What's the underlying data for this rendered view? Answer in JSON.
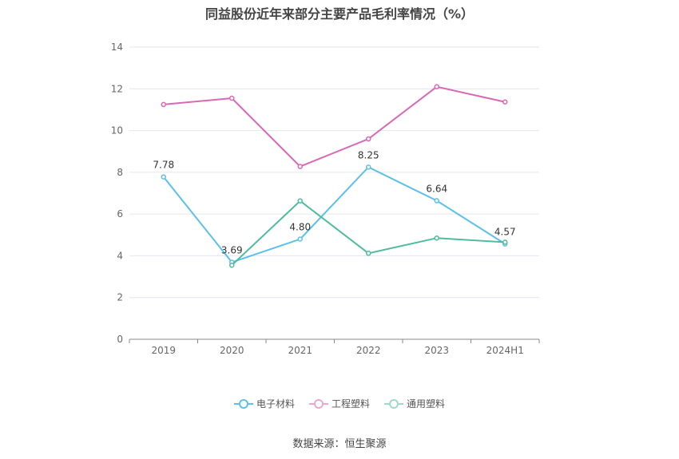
{
  "chart_data": {
    "type": "line",
    "title": "同益股份近年来部分主要产品毛利率情况（%）",
    "categories": [
      "2019",
      "2020",
      "2021",
      "2022",
      "2023",
      "2024H1"
    ],
    "ylim": [
      0,
      14
    ],
    "yticks": [
      "0",
      "2",
      "4",
      "6",
      "8",
      "10",
      "12",
      "14"
    ],
    "grid": true,
    "legend_position": "bottom",
    "series": [
      {
        "name": "电子材料",
        "color": "#5bc0eb",
        "values": [
          7.78,
          3.69,
          4.8,
          8.25,
          6.64,
          4.57
        ],
        "labels": [
          "7.78",
          "3.69",
          "4.80",
          "8.25",
          "6.64",
          "4.57"
        ]
      },
      {
        "name": "工程塑料",
        "color": "#d868b4",
        "values": [
          11.25,
          11.55,
          8.28,
          9.6,
          12.1,
          11.37
        ]
      },
      {
        "name": "通用塑料",
        "color": "#4dbb9c",
        "values": [
          null,
          3.55,
          6.63,
          4.12,
          4.85,
          4.65
        ]
      }
    ]
  },
  "footer": {
    "source": "数据来源：恒生聚源"
  }
}
